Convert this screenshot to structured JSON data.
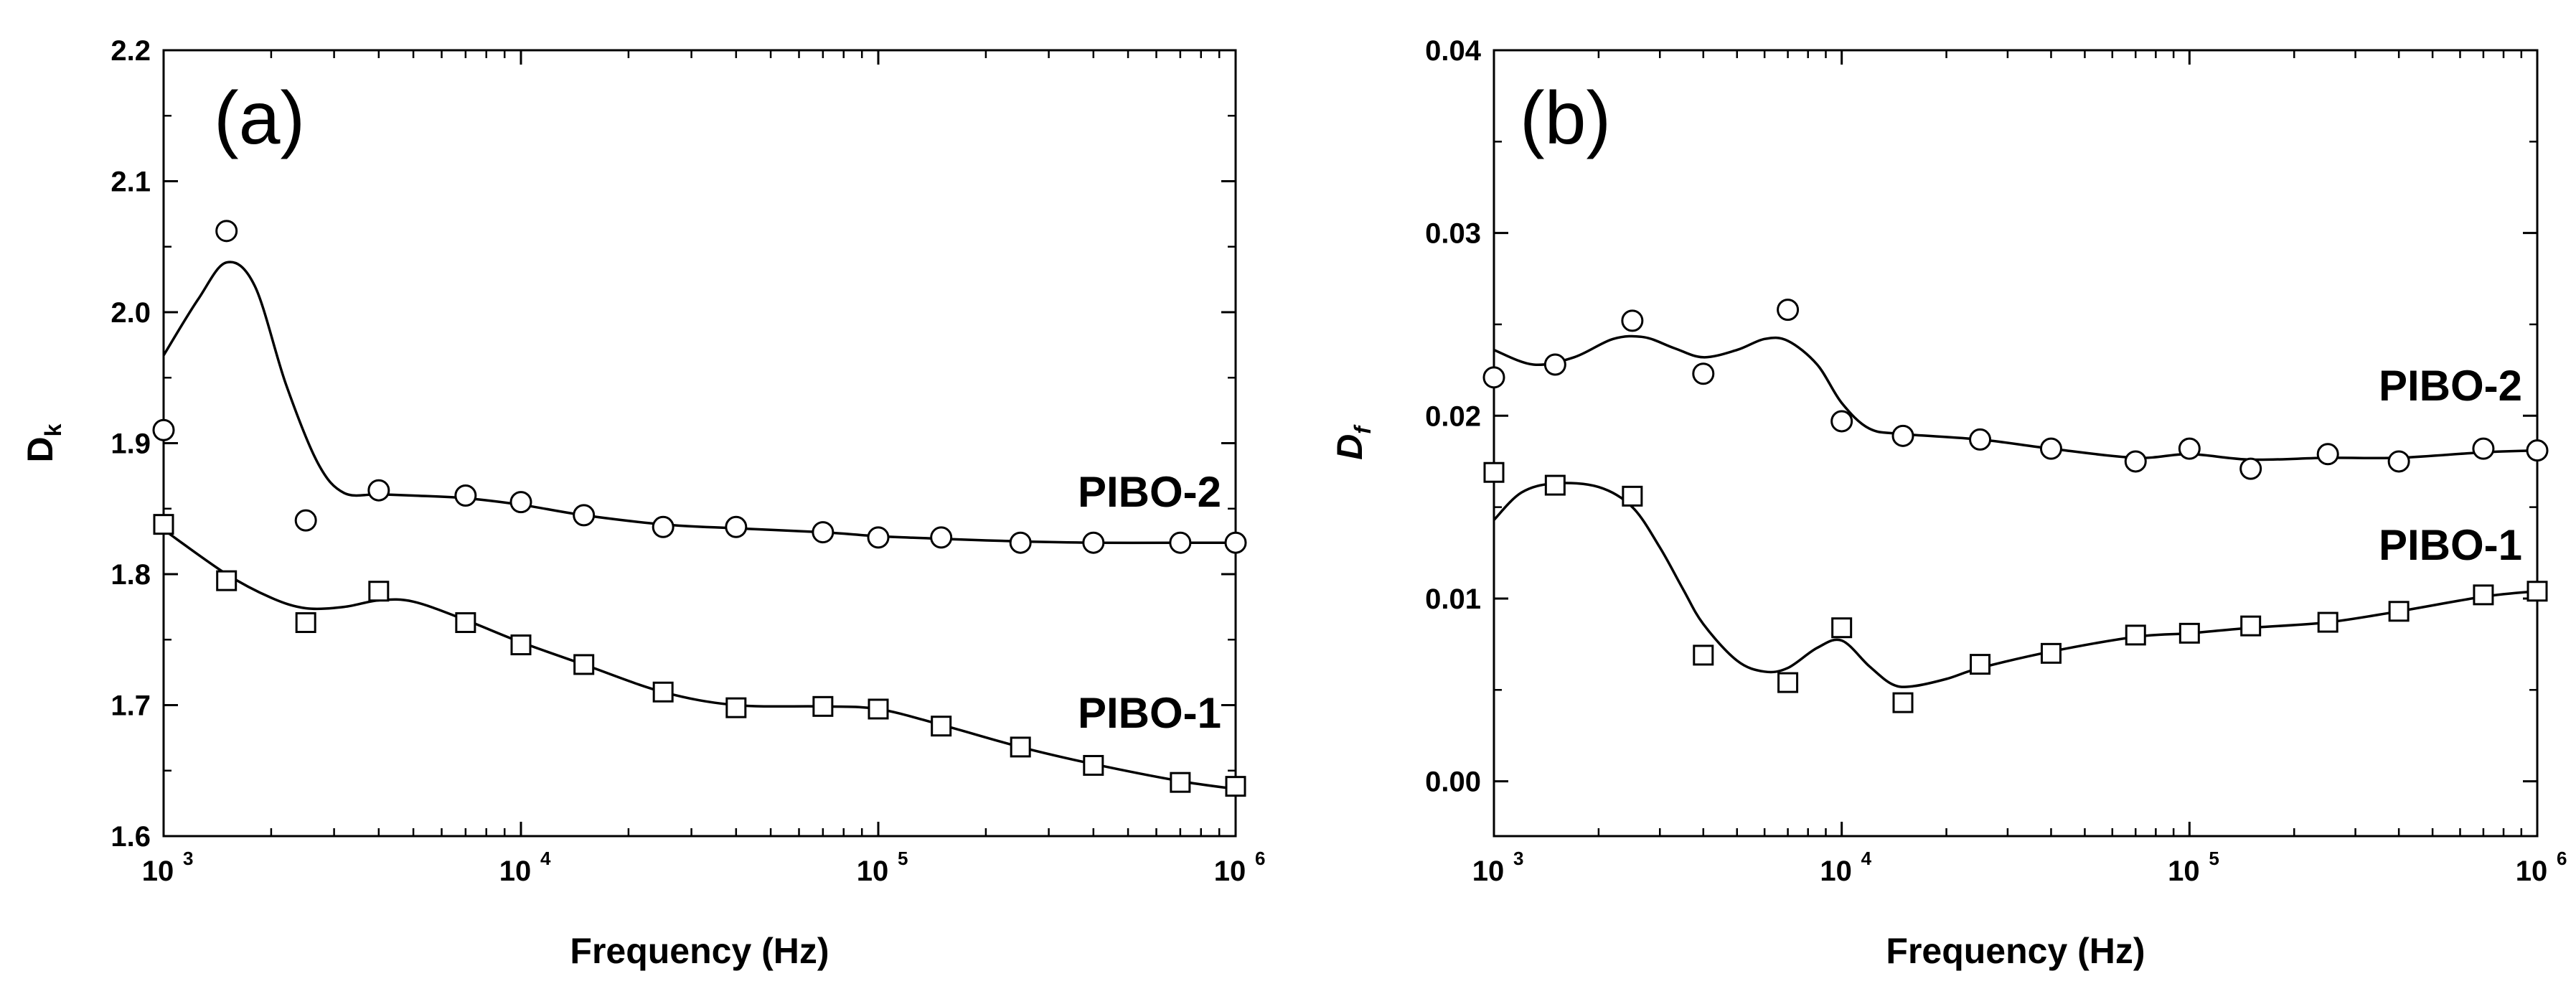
{
  "chart_data": [
    {
      "type": "line",
      "panel_label": "(a)",
      "xlabel": "Frequency (Hz)",
      "xscale": "log",
      "xlim": [
        1000,
        1000000
      ],
      "xticks": [
        {
          "base": "10",
          "exp": "3"
        },
        {
          "base": "10",
          "exp": "4"
        },
        {
          "base": "10",
          "exp": "5"
        },
        {
          "base": "10",
          "exp": "6"
        }
      ],
      "ylabel": "D",
      "ylabel_sub": "k",
      "ylim": [
        1.6,
        2.2
      ],
      "yticks": [
        "1.6",
        "1.7",
        "1.8",
        "1.9",
        "2.0",
        "2.1",
        "2.2"
      ],
      "series": [
        {
          "name": "PIBO-2",
          "marker": "circle",
          "x": [
            1000,
            1500,
            2500,
            4000,
            7000,
            10000,
            15000,
            25000,
            40000,
            70000,
            100000,
            150000,
            250000,
            400000,
            700000,
            1000000
          ],
          "values": [
            1.91,
            2.062,
            1.841,
            1.864,
            1.86,
            1.855,
            1.845,
            1.836,
            1.836,
            1.832,
            1.828,
            1.828,
            1.824,
            1.824,
            1.824,
            1.824
          ],
          "curve_x": [
            1000,
            1250,
            1500,
            1800,
            2200,
            2700,
            3200,
            4000,
            5000,
            7000,
            10000,
            15000,
            25000,
            40000,
            70000,
            100000,
            150000,
            250000,
            400000,
            700000,
            1000000
          ],
          "curve_y": [
            1.967,
            2.01,
            2.038,
            2.02,
            1.945,
            1.885,
            1.862,
            1.861,
            1.86,
            1.858,
            1.853,
            1.845,
            1.838,
            1.835,
            1.832,
            1.829,
            1.827,
            1.825,
            1.824,
            1.824,
            1.824
          ]
        },
        {
          "name": "PIBO-1",
          "marker": "square",
          "x": [
            1000,
            1500,
            2500,
            4000,
            7000,
            10000,
            15000,
            25000,
            40000,
            70000,
            100000,
            150000,
            250000,
            400000,
            700000,
            1000000
          ],
          "values": [
            1.838,
            1.795,
            1.763,
            1.787,
            1.763,
            1.746,
            1.731,
            1.71,
            1.698,
            1.699,
            1.697,
            1.684,
            1.668,
            1.654,
            1.641,
            1.638
          ],
          "curve_x": [
            1000,
            1500,
            2000,
            2500,
            3200,
            4000,
            5000,
            7000,
            10000,
            15000,
            25000,
            40000,
            70000,
            100000,
            150000,
            250000,
            400000,
            700000,
            1000000
          ],
          "curve_y": [
            1.834,
            1.8,
            1.782,
            1.774,
            1.775,
            1.78,
            1.779,
            1.765,
            1.748,
            1.731,
            1.71,
            1.7,
            1.699,
            1.697,
            1.685,
            1.668,
            1.655,
            1.642,
            1.636
          ]
        }
      ]
    },
    {
      "type": "line",
      "panel_label": "(b)",
      "xlabel": "Frequency (Hz)",
      "xscale": "log",
      "xlim": [
        1000,
        1000000
      ],
      "xticks": [
        {
          "base": "10",
          "exp": "3"
        },
        {
          "base": "10",
          "exp": "4"
        },
        {
          "base": "10",
          "exp": "5"
        },
        {
          "base": "10",
          "exp": "6"
        }
      ],
      "ylabel": "D",
      "ylabel_sub": "f",
      "ylim": [
        -0.003,
        0.04
      ],
      "yticks": [
        "0.00",
        "0.01",
        "0.02",
        "0.03",
        "0.04"
      ],
      "series": [
        {
          "name": "PIBO-2",
          "marker": "circle",
          "x": [
            1000,
            1500,
            2500,
            4000,
            7000,
            10000,
            15000,
            25000,
            40000,
            70000,
            100000,
            150000,
            250000,
            400000,
            700000,
            1000000
          ],
          "values": [
            0.0221,
            0.0228,
            0.0252,
            0.0223,
            0.0258,
            0.0197,
            0.0189,
            0.0187,
            0.0182,
            0.0175,
            0.0182,
            0.0171,
            0.0179,
            0.0175,
            0.0182,
            0.0181
          ],
          "curve_x": [
            1000,
            1300,
            1700,
            2200,
            2700,
            3300,
            4000,
            5000,
            6000,
            7000,
            8500,
            10000,
            12000,
            15000,
            25000,
            40000,
            70000,
            100000,
            150000,
            250000,
            400000,
            700000,
            1000000
          ],
          "curve_y": [
            0.0236,
            0.0228,
            0.0232,
            0.0242,
            0.0243,
            0.0237,
            0.0232,
            0.0236,
            0.0242,
            0.0241,
            0.0228,
            0.0207,
            0.0193,
            0.019,
            0.0187,
            0.0182,
            0.0177,
            0.0179,
            0.0176,
            0.0177,
            0.0177,
            0.018,
            0.0181
          ]
        },
        {
          "name": "PIBO-1",
          "marker": "square",
          "x": [
            1000,
            1500,
            2500,
            4000,
            7000,
            10000,
            15000,
            25000,
            40000,
            70000,
            100000,
            150000,
            250000,
            400000,
            700000,
            1000000
          ],
          "values": [
            0.0169,
            0.0162,
            0.0156,
            0.0069,
            0.0054,
            0.0084,
            0.0043,
            0.0064,
            0.007,
            0.008,
            0.0081,
            0.0085,
            0.0087,
            0.0093,
            0.0102,
            0.0104
          ],
          "curve_x": [
            1000,
            1200,
            1500,
            2000,
            2500,
            3000,
            3500,
            4000,
            5000,
            6000,
            7000,
            8500,
            10000,
            12000,
            14000,
            16000,
            20000,
            25000,
            40000,
            70000,
            100000,
            150000,
            250000,
            400000,
            700000,
            1000000
          ],
          "curve_y": [
            0.0143,
            0.0158,
            0.0163,
            0.0161,
            0.015,
            0.0128,
            0.0105,
            0.0086,
            0.0066,
            0.006,
            0.0062,
            0.0073,
            0.0077,
            0.0063,
            0.0053,
            0.0052,
            0.0056,
            0.0062,
            0.0071,
            0.0079,
            0.0081,
            0.0084,
            0.0087,
            0.0093,
            0.0101,
            0.0104
          ]
        }
      ]
    }
  ]
}
